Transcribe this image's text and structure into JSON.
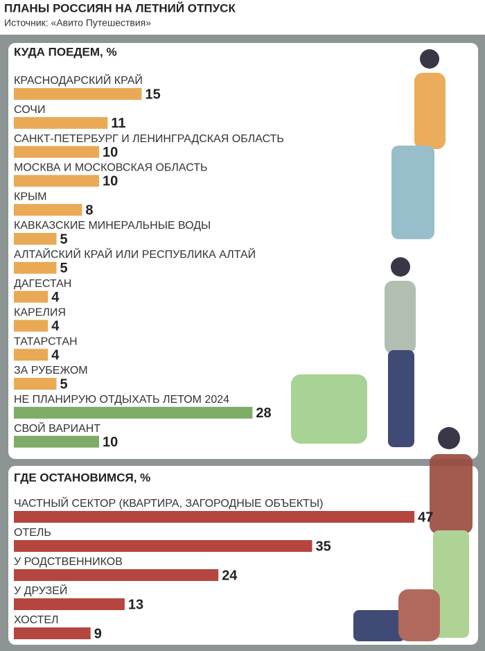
{
  "header": {
    "title": "ПЛАНЫ РОССИЯН НА ЛЕТНИЙ ОТПУСК",
    "source": "Источник: «Авито Путешествия»"
  },
  "chart_data": [
    {
      "type": "bar",
      "orientation": "horizontal",
      "title": "КУДА ПОЕДЕМ, %",
      "categories": [
        "КРАСНОДАРСКИЙ КРАЙ",
        "СОЧИ",
        "САНКТ-ПЕТЕРБУРГ И ЛЕНИНГРАДСКАЯ ОБЛАСТЬ",
        "МОСКВА И МОСКОВСКАЯ ОБЛАСТЬ",
        "КРЫМ",
        "КАВКАЗСКИЕ МИНЕРАЛЬНЫЕ ВОДЫ",
        "АЛТАЙСКИЙ КРАЙ ИЛИ РЕСПУБЛИКА АЛТАЙ",
        "ДАГЕСТАН",
        "КАРЕЛИЯ",
        "ТАТАРСТАН",
        "ЗА РУБЕЖОМ",
        "НЕ ПЛАНИРУЮ ОТДЫХАТЬ ЛЕТОМ 2024",
        "СВОЙ ВАРИАНТ"
      ],
      "values": [
        15,
        11,
        10,
        10,
        8,
        5,
        5,
        4,
        4,
        4,
        5,
        28,
        10
      ],
      "colors": [
        "#e9a955",
        "#e9a955",
        "#e9a955",
        "#e9a955",
        "#e9a955",
        "#e9a955",
        "#e9a955",
        "#e9a955",
        "#e9a955",
        "#e9a955",
        "#e9a955",
        "#7eac68",
        "#7eac68"
      ]
    },
    {
      "type": "bar",
      "orientation": "horizontal",
      "title": "ГДЕ ОСТАНОВИМСЯ, %",
      "categories": [
        "ЧАСТНЫЙ СЕКТОР (КВАРТИРА, ЗАГОРОДНЫЕ ОБЪЕКТЫ)",
        "ОТЕЛЬ",
        "У РОДСТВЕННИКОВ",
        "У ДРУЗЕЙ",
        "ХОСТЕЛ"
      ],
      "values": [
        47,
        35,
        24,
        13,
        9
      ],
      "color": "#b5463f"
    }
  ]
}
